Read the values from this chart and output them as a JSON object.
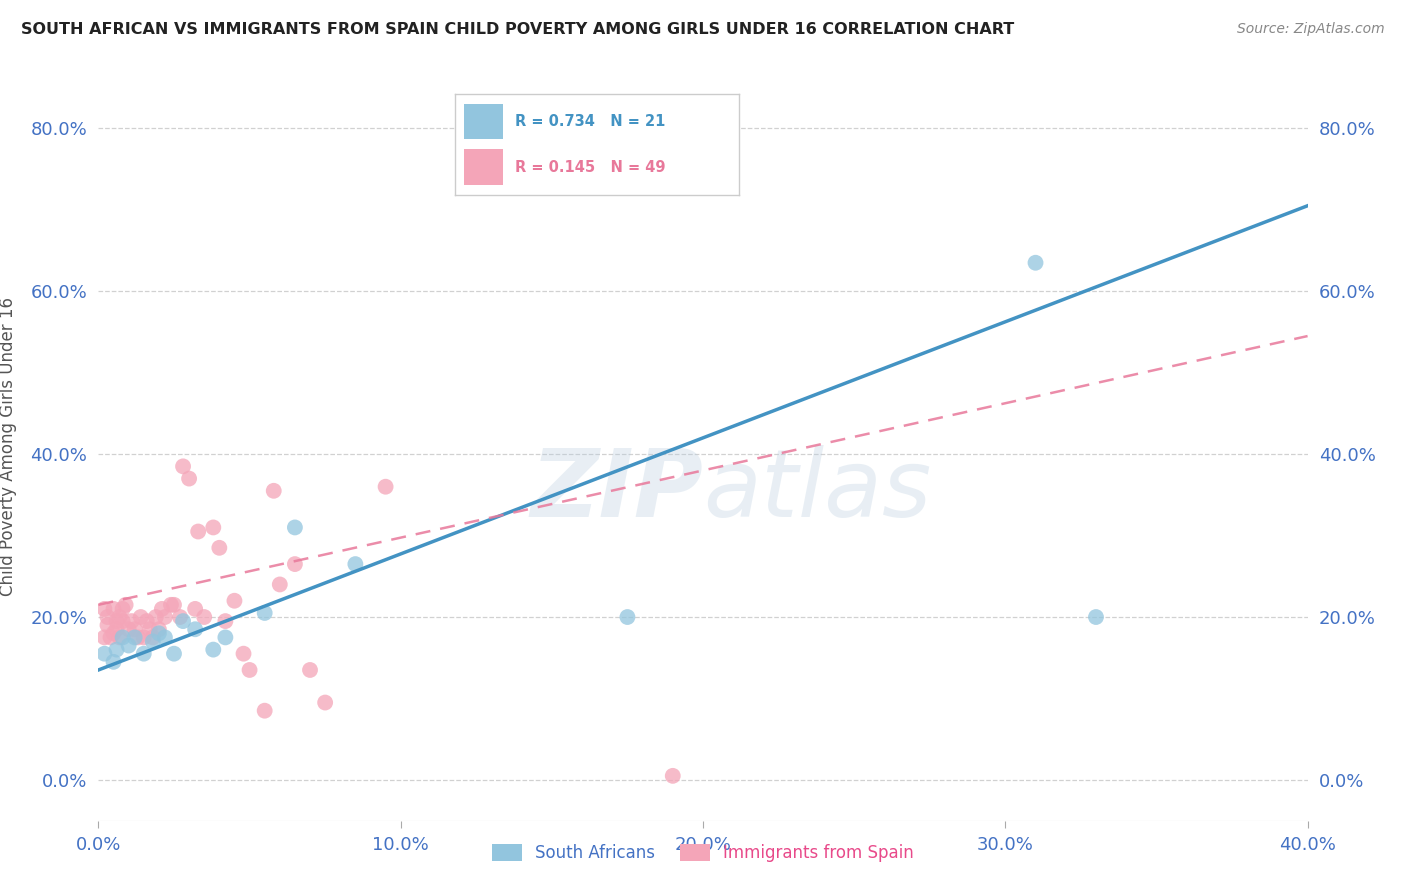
{
  "title": "SOUTH AFRICAN VS IMMIGRANTS FROM SPAIN CHILD POVERTY AMONG GIRLS UNDER 16 CORRELATION CHART",
  "source": "Source: ZipAtlas.com",
  "ylabel": "Child Poverty Among Girls Under 16",
  "xlim": [
    0.0,
    0.4
  ],
  "ylim": [
    -0.05,
    0.87
  ],
  "xticks": [
    0.0,
    0.1,
    0.2,
    0.3,
    0.4
  ],
  "yticks": [
    0.0,
    0.2,
    0.4,
    0.6,
    0.8
  ],
  "ytick_labels": [
    "0.0%",
    "20.0%",
    "40.0%",
    "60.0%",
    "80.0%"
  ],
  "xtick_labels": [
    "0.0%",
    "10.0%",
    "20.0%",
    "30.0%",
    "40.0%"
  ],
  "blue_R": 0.734,
  "blue_N": 21,
  "pink_R": 0.145,
  "pink_N": 49,
  "blue_color": "#92c5de",
  "pink_color": "#f4a5b8",
  "blue_line_color": "#4393c3",
  "pink_line_color": "#e8789a",
  "legend_label_blue": "South Africans",
  "legend_label_pink": "Immigrants from Spain",
  "blue_line_x0": 0.0,
  "blue_line_y0": 0.135,
  "blue_line_x1": 0.4,
  "blue_line_y1": 0.705,
  "pink_line_x0": 0.0,
  "pink_line_y0": 0.215,
  "pink_line_x1": 0.4,
  "pink_line_y1": 0.545,
  "blue_scatter_x": [
    0.002,
    0.005,
    0.006,
    0.008,
    0.01,
    0.012,
    0.015,
    0.018,
    0.02,
    0.022,
    0.025,
    0.028,
    0.032,
    0.038,
    0.042,
    0.055,
    0.065,
    0.085,
    0.175,
    0.31,
    0.33
  ],
  "blue_scatter_y": [
    0.155,
    0.145,
    0.16,
    0.175,
    0.165,
    0.175,
    0.155,
    0.17,
    0.18,
    0.175,
    0.155,
    0.195,
    0.185,
    0.16,
    0.175,
    0.205,
    0.31,
    0.265,
    0.2,
    0.635,
    0.2
  ],
  "pink_scatter_x": [
    0.002,
    0.002,
    0.003,
    0.003,
    0.004,
    0.005,
    0.005,
    0.006,
    0.006,
    0.007,
    0.007,
    0.008,
    0.008,
    0.009,
    0.01,
    0.011,
    0.012,
    0.013,
    0.014,
    0.015,
    0.016,
    0.017,
    0.018,
    0.019,
    0.02,
    0.021,
    0.022,
    0.024,
    0.025,
    0.027,
    0.028,
    0.03,
    0.032,
    0.033,
    0.035,
    0.038,
    0.04,
    0.042,
    0.045,
    0.048,
    0.05,
    0.055,
    0.058,
    0.06,
    0.065,
    0.07,
    0.075,
    0.095,
    0.19
  ],
  "pink_scatter_y": [
    0.175,
    0.21,
    0.19,
    0.2,
    0.175,
    0.21,
    0.18,
    0.195,
    0.185,
    0.2,
    0.175,
    0.195,
    0.21,
    0.215,
    0.185,
    0.195,
    0.185,
    0.175,
    0.2,
    0.175,
    0.195,
    0.185,
    0.175,
    0.2,
    0.185,
    0.21,
    0.2,
    0.215,
    0.215,
    0.2,
    0.385,
    0.37,
    0.21,
    0.305,
    0.2,
    0.31,
    0.285,
    0.195,
    0.22,
    0.155,
    0.135,
    0.085,
    0.355,
    0.24,
    0.265,
    0.135,
    0.095,
    0.36,
    0.005
  ],
  "background_color": "#ffffff",
  "grid_color": "#cccccc",
  "title_color": "#222222",
  "axis_label_color": "#555555",
  "tick_color_blue": "#4472c4",
  "tick_color_pink": "#e84a8a",
  "watermark_color": "#b8ccdf",
  "watermark_alpha": 0.32
}
